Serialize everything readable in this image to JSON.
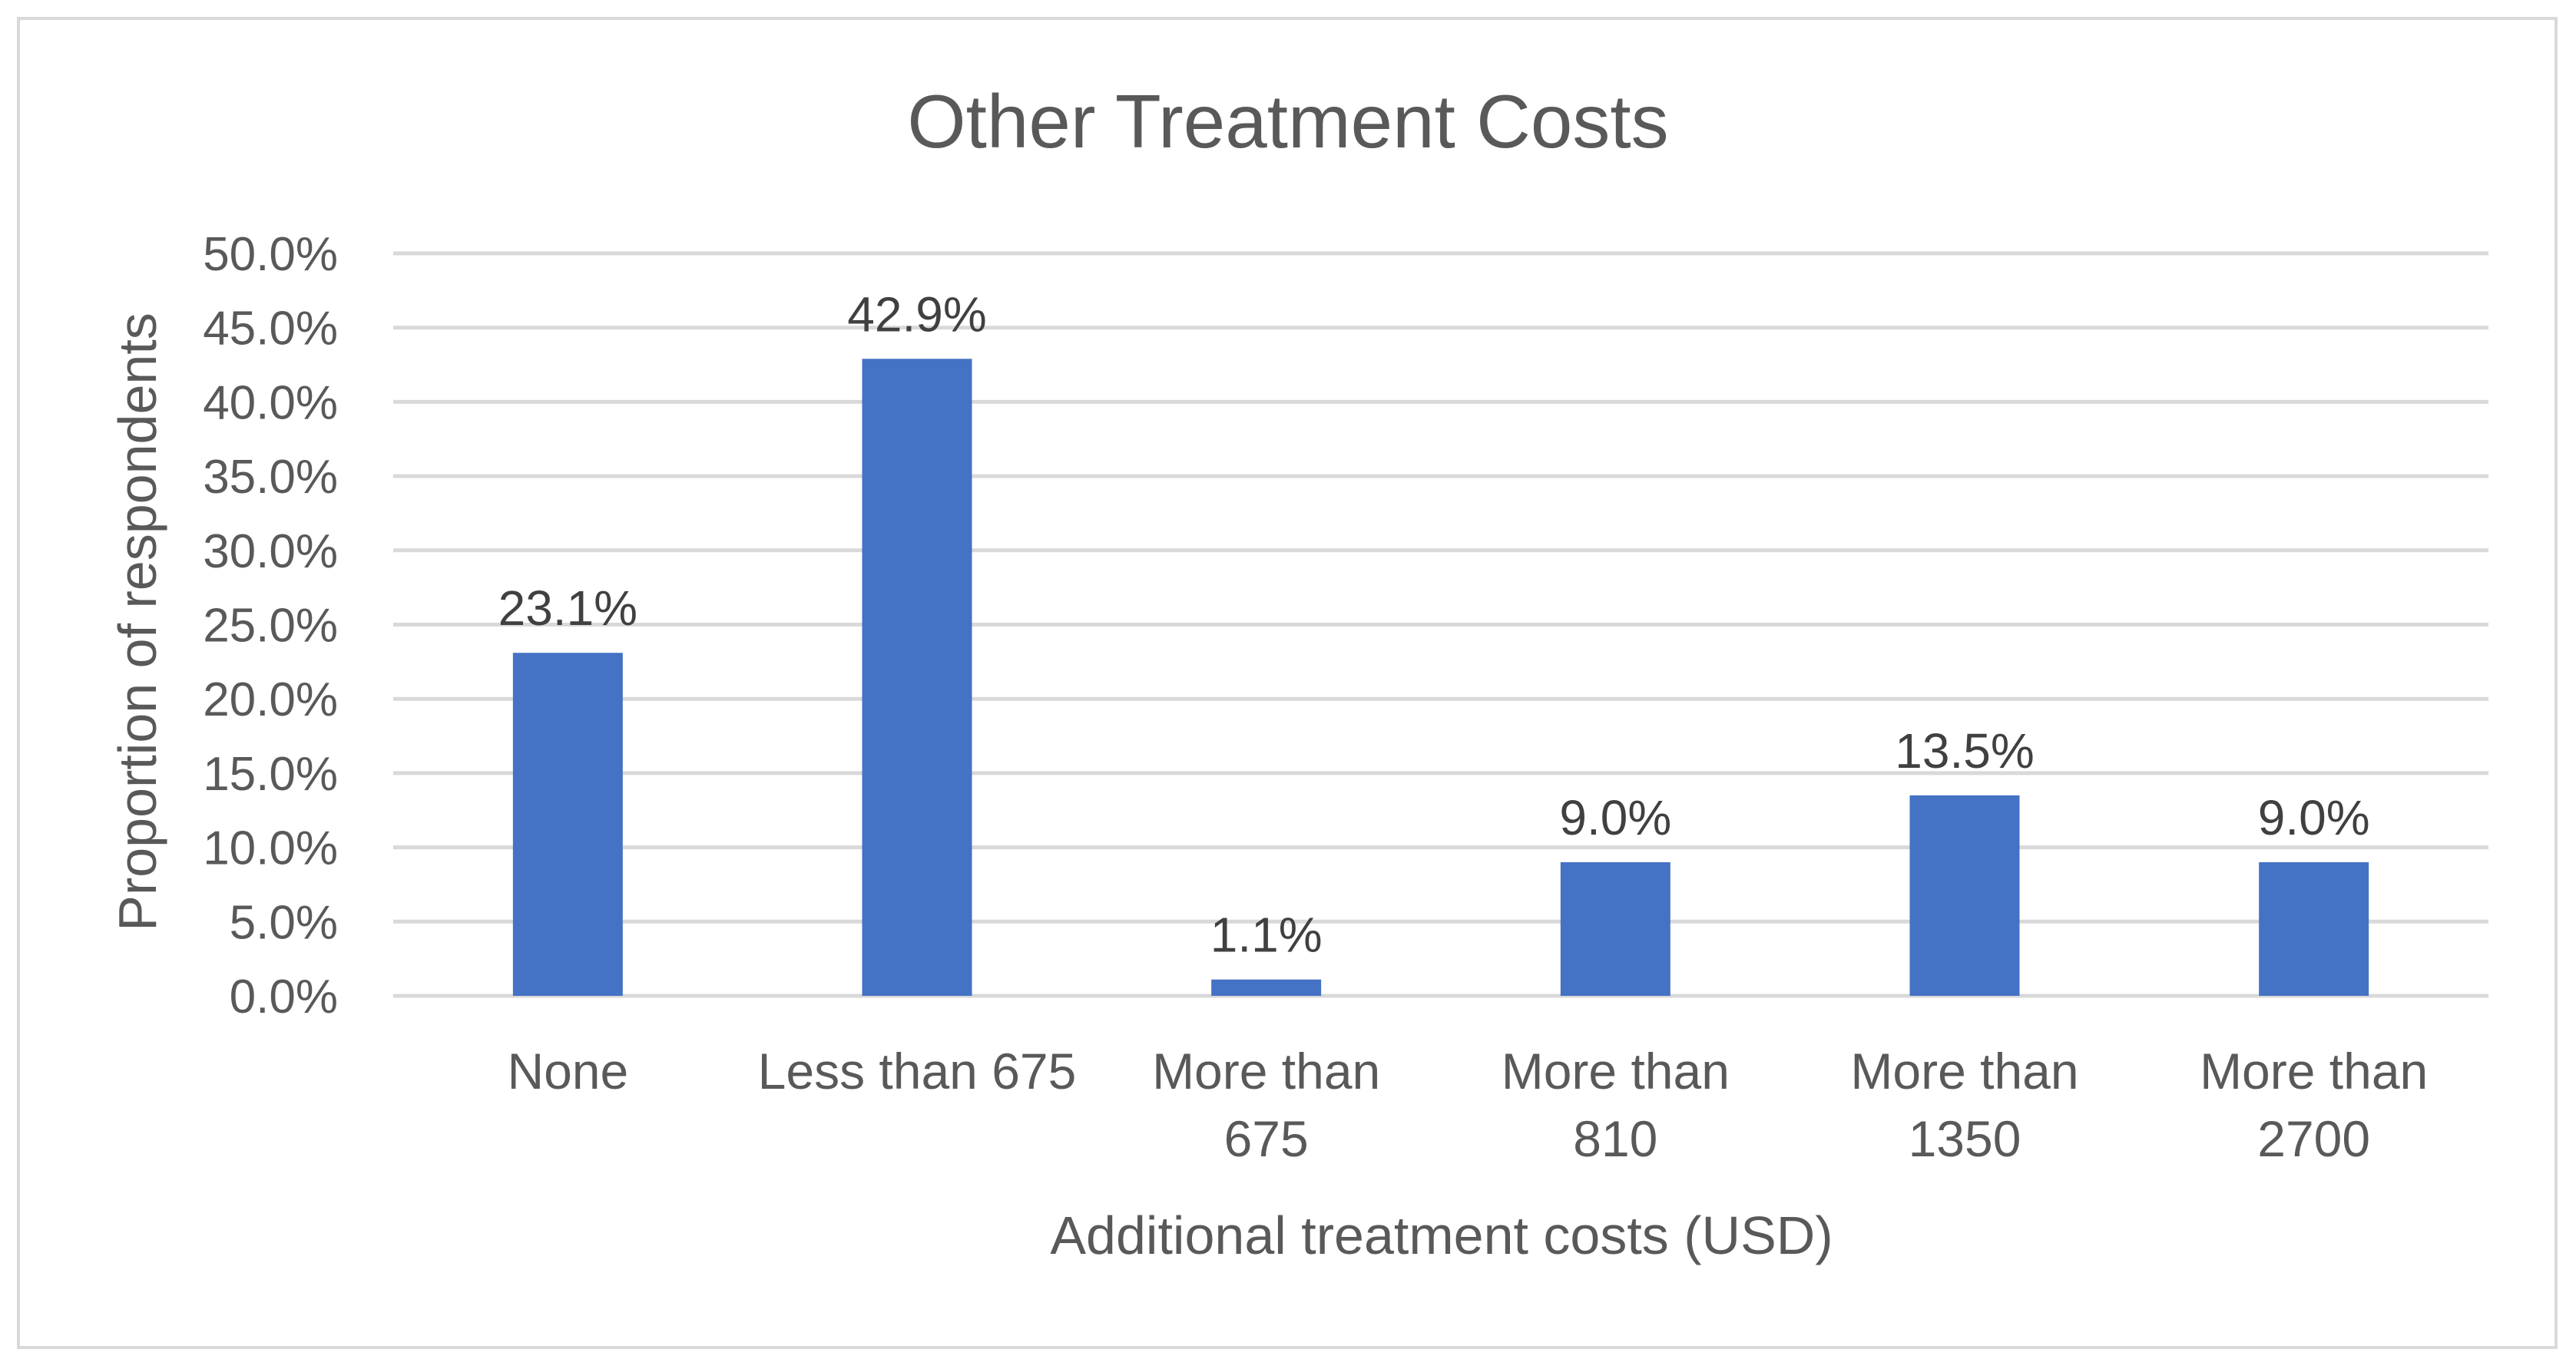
{
  "chart_data": {
    "type": "bar",
    "title": "Other Treatment Costs",
    "xlabel": "Additional treatment costs (USD)",
    "ylabel": "Proportion of respondents",
    "categories": [
      [
        "None"
      ],
      [
        "Less than 675"
      ],
      [
        "More than",
        "675"
      ],
      [
        "More than",
        "810"
      ],
      [
        "More than",
        "1350"
      ],
      [
        "More than",
        "2700"
      ]
    ],
    "values": [
      23.1,
      42.9,
      1.1,
      9.0,
      13.5,
      9.0
    ],
    "data_labels": [
      "23.1%",
      "42.9%",
      "1.1%",
      "9.0%",
      "13.5%",
      "9.0%"
    ],
    "ylim": [
      0,
      50
    ],
    "y_ticks": [
      0,
      5,
      10,
      15,
      20,
      25,
      30,
      35,
      40,
      45,
      50
    ],
    "y_tick_labels": [
      "0.0%",
      "5.0%",
      "10.0%",
      "15.0%",
      "20.0%",
      "25.0%",
      "30.0%",
      "35.0%",
      "40.0%",
      "45.0%",
      "50.0%"
    ],
    "grid": true,
    "legend": "none",
    "bar_color": "#4472c4",
    "grid_color": "#d9d9d9"
  }
}
